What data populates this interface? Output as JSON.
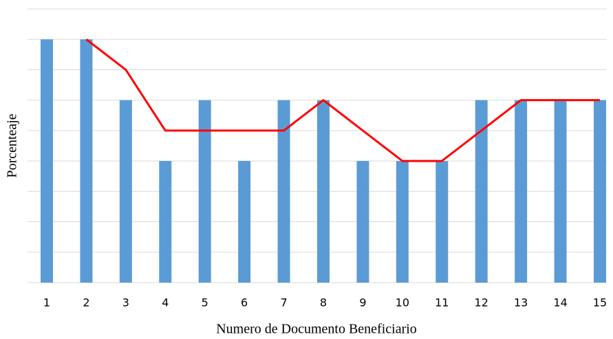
{
  "chart_data": {
    "type": "bar",
    "x_label": "Numero de Documento Beneficiario",
    "y_label": "Porcenteaje",
    "categories": [
      "1",
      "2",
      "3",
      "4",
      "5",
      "6",
      "7",
      "8",
      "9",
      "10",
      "11",
      "12",
      "13",
      "14",
      "15"
    ],
    "series": [
      {
        "type": "bar",
        "color": "#5b9bd5",
        "values": [
          8,
          8,
          6,
          4,
          6,
          4,
          6,
          6,
          4,
          4,
          4,
          6,
          6,
          6,
          6
        ]
      },
      {
        "type": "line",
        "color": "#ff0000",
        "values": [
          null,
          8,
          7,
          5,
          5,
          5,
          5,
          6,
          5,
          4,
          4,
          5,
          6,
          6,
          6
        ]
      }
    ],
    "ylim": [
      0,
      9
    ],
    "yticks": [
      0,
      1,
      2,
      3,
      4,
      5,
      6,
      7,
      8,
      9
    ],
    "ytick_labels": false,
    "grid": true
  }
}
